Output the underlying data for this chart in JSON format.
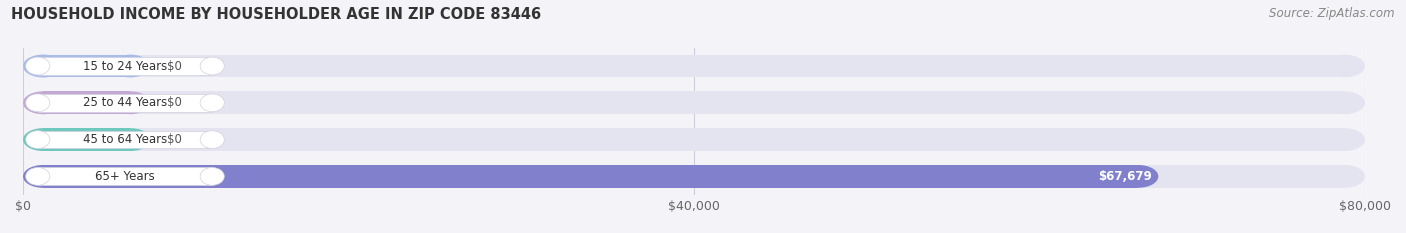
{
  "title": "HOUSEHOLD INCOME BY HOUSEHOLDER AGE IN ZIP CODE 83446",
  "source": "Source: ZipAtlas.com",
  "categories": [
    "15 to 24 Years",
    "25 to 44 Years",
    "45 to 64 Years",
    "65+ Years"
  ],
  "values": [
    0,
    0,
    0,
    67679
  ],
  "bar_colors": [
    "#a8bce8",
    "#c4a8d4",
    "#6ec8be",
    "#8080cc"
  ],
  "bar_labels": [
    "$0",
    "$0",
    "$0",
    "$67,679"
  ],
  "background_color": "#f4f4f8",
  "bar_bg_color": "#e4e4f0",
  "xlim_max": 80000,
  "xtick_vals": [
    0,
    40000,
    80000
  ],
  "xtick_labels": [
    "$0",
    "$40,000",
    "$80,000"
  ],
  "figsize": [
    14.06,
    2.33
  ],
  "dpi": 100
}
